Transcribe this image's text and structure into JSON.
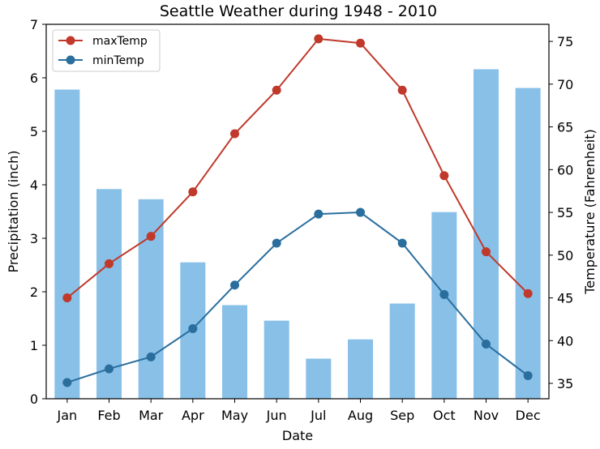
{
  "chart_data": {
    "type": "bar",
    "title": "Seattle Weather during 1948 - 2010",
    "xlabel": "Date",
    "ylabel": "Precipitation (inch)",
    "y2label": "Temperature (Fahrenheit)",
    "categories": [
      "Jan",
      "Feb",
      "Mar",
      "Apr",
      "May",
      "Jun",
      "Jul",
      "Aug",
      "Sep",
      "Oct",
      "Nov",
      "Dec"
    ],
    "ylim": [
      0,
      7
    ],
    "yticks": [
      0,
      1,
      2,
      3,
      4,
      5,
      6,
      7
    ],
    "y2lim": [
      33.2,
      77.0
    ],
    "y2ticks": [
      35,
      40,
      45,
      50,
      55,
      60,
      65,
      70,
      75
    ],
    "legend_position": "top-left",
    "grid": false,
    "series": [
      {
        "name": "Precipitation",
        "type": "bar",
        "axis": "left",
        "color": "#88c0e8",
        "values": [
          5.78,
          3.92,
          3.73,
          2.55,
          1.75,
          1.46,
          0.75,
          1.11,
          1.78,
          3.49,
          6.16,
          5.81
        ]
      },
      {
        "name": "maxTemp",
        "type": "line",
        "axis": "right",
        "color": "#c0392b",
        "values": [
          45.0,
          49.0,
          52.2,
          57.4,
          64.2,
          69.3,
          75.3,
          74.8,
          69.3,
          59.3,
          50.4,
          45.5
        ]
      },
      {
        "name": "minTemp",
        "type": "line",
        "axis": "right",
        "color": "#2a6e9e",
        "values": [
          35.1,
          36.7,
          38.1,
          41.4,
          46.5,
          51.4,
          54.8,
          55.0,
          51.4,
          45.4,
          39.6,
          35.9
        ]
      }
    ]
  }
}
